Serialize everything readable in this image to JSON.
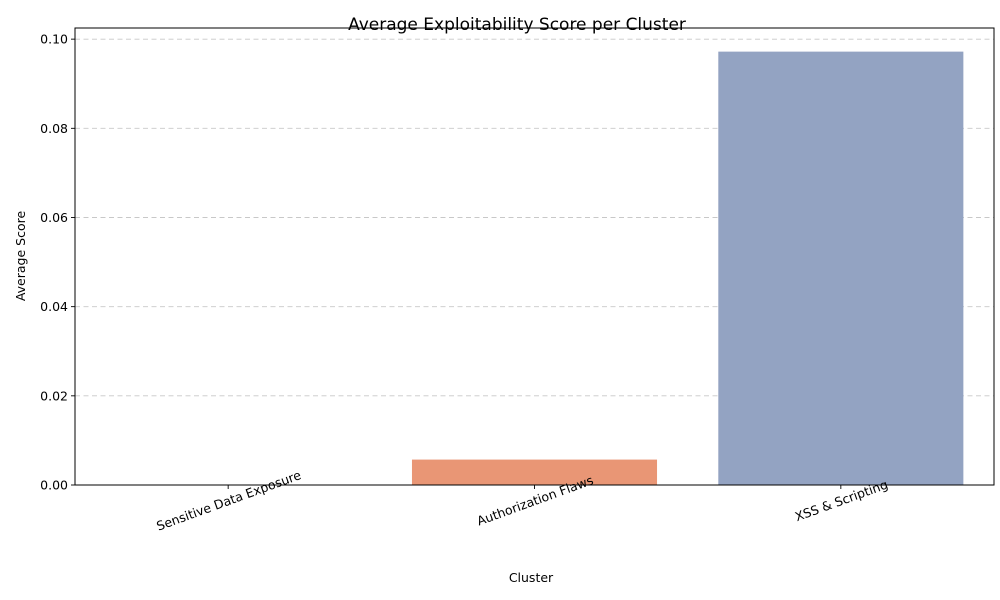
{
  "chart_data": {
    "type": "bar",
    "title": "Average Exploitability Score per Cluster",
    "xlabel": "Cluster",
    "ylabel": "Average Score",
    "categories": [
      "Sensitive Data Exposure",
      "Authorization Flaws",
      "XSS & Scripting"
    ],
    "values": [
      0.0,
      0.0057,
      0.0972
    ],
    "colors": [
      "#66c2a5",
      "#e99675",
      "#93a3c2"
    ],
    "ylim": [
      0,
      0.1025
    ],
    "yticks": [
      0.0,
      0.02,
      0.04,
      0.06,
      0.08,
      0.1
    ],
    "ytick_labels": [
      "0.00",
      "0.02",
      "0.04",
      "0.06",
      "0.08",
      "0.10"
    ],
    "grid": "y-dashed",
    "xtick_rotation": "rotated"
  }
}
